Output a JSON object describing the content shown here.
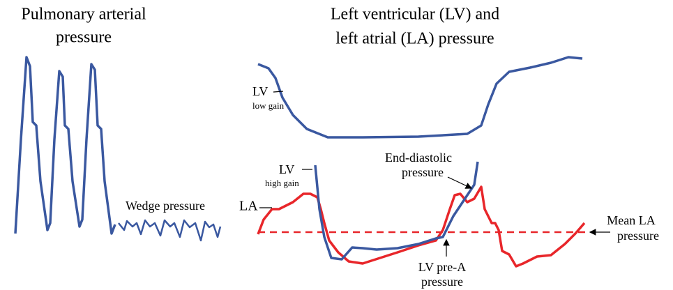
{
  "left_panel": {
    "title": [
      "Pulmonary arterial",
      "pressure"
    ],
    "wedge_label": "Wedge pressure"
  },
  "right_panel": {
    "title": [
      "Left ventricular (LV) and",
      "left atrial (LA) pressure"
    ],
    "lv_low_gain": {
      "label": "LV",
      "sublabel": "low gain"
    },
    "lv_high_gain": {
      "label": "LV",
      "sublabel": "high gain"
    },
    "la_label": "LA",
    "end_diastolic": [
      "End-diastolic",
      "pressure"
    ],
    "mean_la": [
      "Mean LA",
      "pressure"
    ],
    "lv_pre_a": [
      "LV pre-A",
      "pressure"
    ]
  }
}
